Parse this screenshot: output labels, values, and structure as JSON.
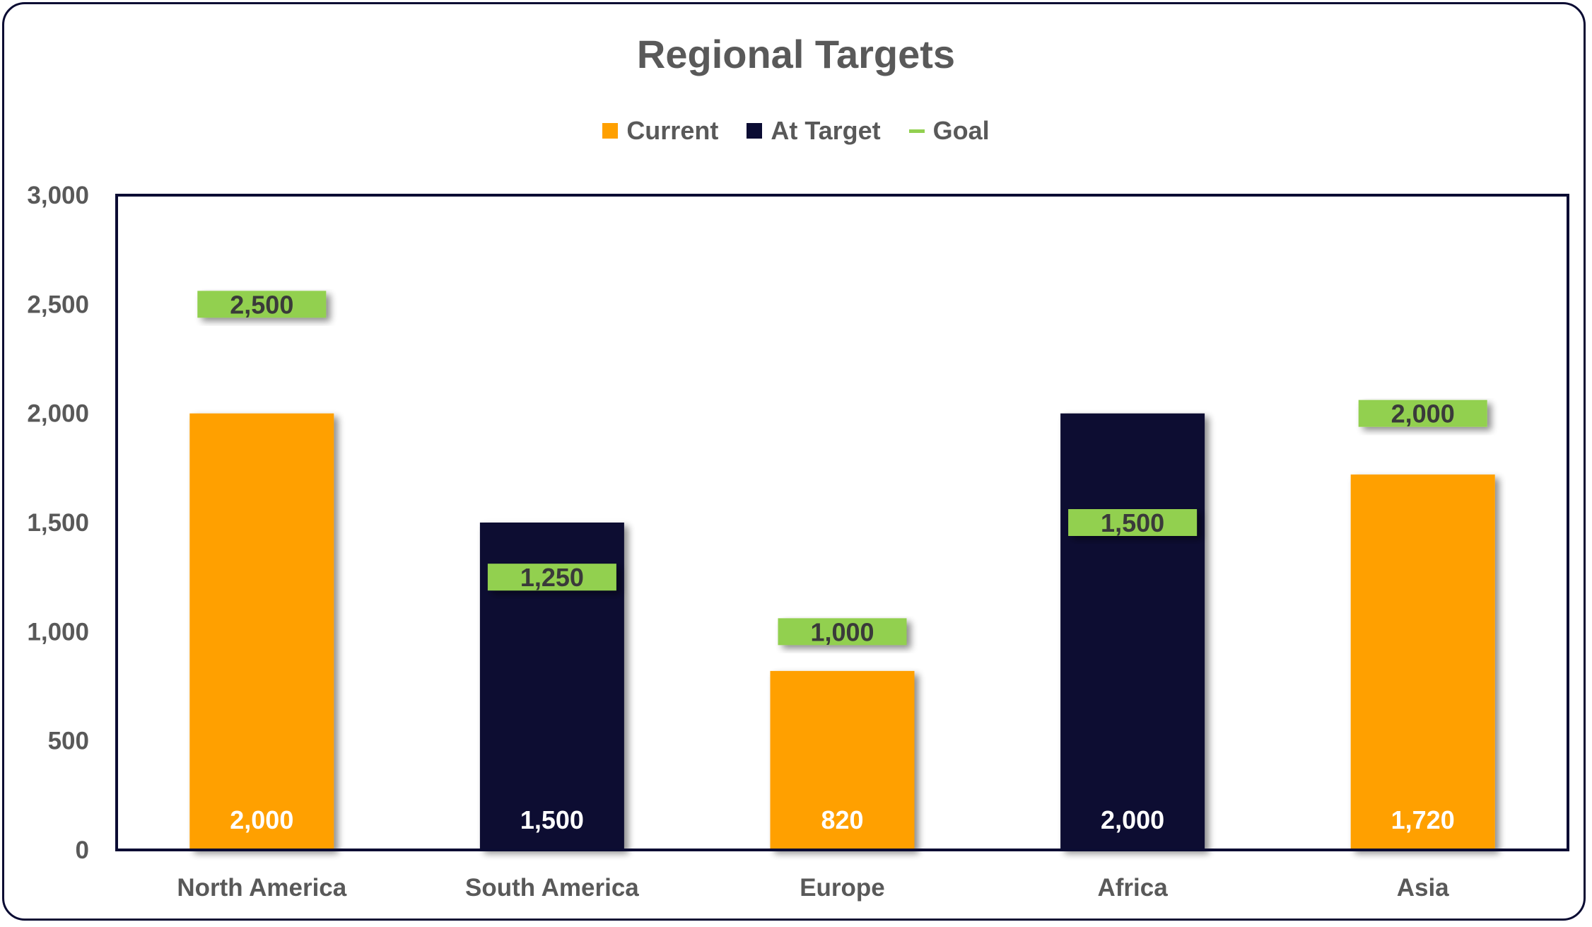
{
  "chart_data": {
    "type": "bar",
    "title": "Regional Targets",
    "categories": [
      "North America",
      "South America",
      "Europe",
      "Africa",
      "Asia"
    ],
    "series": [
      {
        "name": "Current",
        "values": [
          2000,
          null,
          820,
          null,
          1720
        ],
        "color": "#FFA000"
      },
      {
        "name": "At Target",
        "values": [
          null,
          1500,
          null,
          2000,
          null
        ],
        "color": "#0B0C33"
      },
      {
        "name": "Goal",
        "values": [
          2500,
          1250,
          1000,
          1500,
          2000
        ],
        "color": "#92D050"
      }
    ],
    "bar_values": [
      2000,
      1500,
      820,
      2000,
      1720
    ],
    "goal_values": [
      2500,
      1250,
      1000,
      1500,
      2000
    ],
    "bar_labels": [
      "2,000",
      "1,500",
      "820",
      "2,000",
      "1,720"
    ],
    "goal_labels": [
      "2,500",
      "1,250",
      "1,000",
      "1,500",
      "2,000"
    ],
    "y_ticks": [
      0,
      500,
      1000,
      1500,
      2000,
      2500,
      3000
    ],
    "y_tick_labels": [
      "0",
      "500",
      "1,000",
      "1,500",
      "2,000",
      "2,500",
      "3,000"
    ],
    "ylim": [
      0,
      3000
    ],
    "xlabel": "",
    "ylabel": "",
    "grid": false,
    "legend_position": "top"
  }
}
